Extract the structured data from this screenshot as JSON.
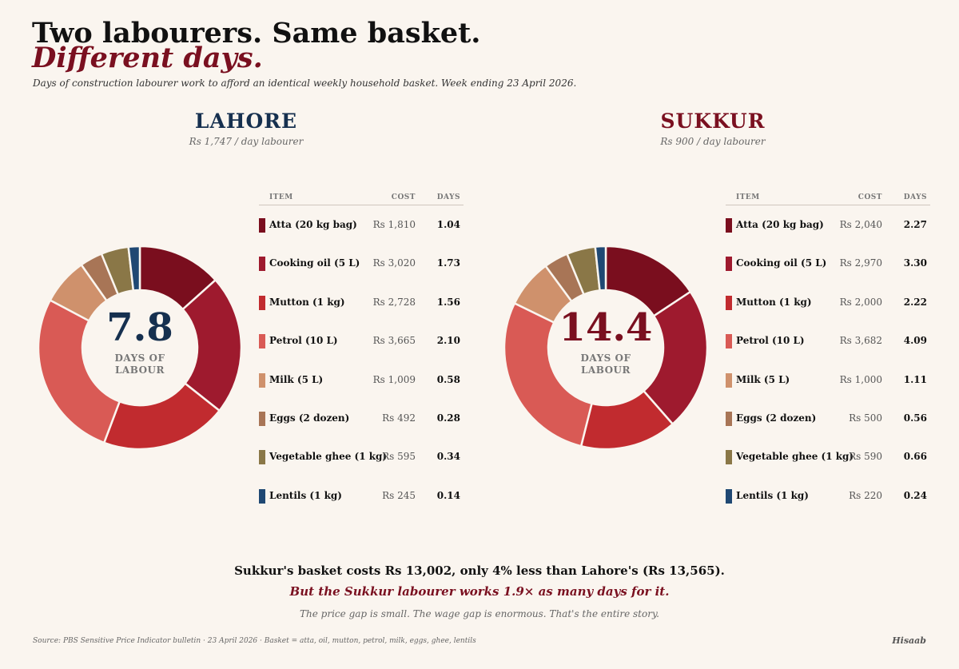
{
  "header": {
    "title_line1": "Two labourers. Same basket.",
    "title_line2": "Different days.",
    "subtitle": "Days of construction labourer work to afford an identical weekly household basket. Week ending 23 April 2026."
  },
  "table_headers": {
    "item": "ITEM",
    "cost": "COST",
    "days": "DAYS"
  },
  "center_label_line1": "DAYS OF",
  "center_label_line2": "LABOUR",
  "colors": {
    "lahore_accent": "#16304f",
    "sukkur_accent": "#7a1020",
    "atta": "#7a0e1e",
    "cooking_oil": "#9e1a2e",
    "mutton": "#c12b2f",
    "petrol": "#d95a55",
    "milk": "#cf916c",
    "eggs": "#a87556",
    "vegetable_ghee": "#8a7747",
    "lentils": "#1f4873"
  },
  "chart_data": [
    {
      "type": "pie",
      "title": "LAHORE",
      "subtitle": "Rs 1,747 / day labourer",
      "center_value": "7.8",
      "categories": [
        "Atta (20 kg bag)",
        "Cooking oil (5 L)",
        "Mutton (1 kg)",
        "Petrol (10 L)",
        "Milk (5 L)",
        "Eggs (2 dozen)",
        "Vegetable ghee (1 kg)",
        "Lentils (1 kg)"
      ],
      "costs": [
        "Rs 1,810",
        "Rs 3,020",
        "Rs 2,728",
        "Rs 3,665",
        "Rs 1,009",
        "Rs 492",
        "Rs 595",
        "Rs 245"
      ],
      "values": [
        1.04,
        1.73,
        1.56,
        2.1,
        0.58,
        0.28,
        0.34,
        0.14
      ]
    },
    {
      "type": "pie",
      "title": "SUKKUR",
      "subtitle": "Rs 900 / day labourer",
      "center_value": "14.4",
      "categories": [
        "Atta (20 kg bag)",
        "Cooking oil (5 L)",
        "Mutton (1 kg)",
        "Petrol (10 L)",
        "Milk (5 L)",
        "Eggs (2 dozen)",
        "Vegetable ghee (1 kg)",
        "Lentils (1 kg)"
      ],
      "costs": [
        "Rs 2,040",
        "Rs 2,970",
        "Rs 2,000",
        "Rs 3,682",
        "Rs 1,000",
        "Rs 500",
        "Rs 590",
        "Rs 220"
      ],
      "values": [
        2.27,
        3.3,
        2.22,
        4.09,
        1.11,
        0.56,
        0.66,
        0.24
      ]
    }
  ],
  "footer": {
    "summary_line1": "Sukkur's basket costs Rs 13,002, only 4% less than Lahore's (Rs 13,565).",
    "summary_line2": "But the Sukkur labourer works 1.9× as many days for it.",
    "summary_line3": "The price gap is small. The wage gap is enormous. That's the entire story.",
    "source": "Source: PBS Sensitive Price Indicator bulletin · 23 April 2026 · Basket = atta, oil, mutton, petrol, milk, eggs, ghee, lentils",
    "brand": "Hisaab"
  }
}
